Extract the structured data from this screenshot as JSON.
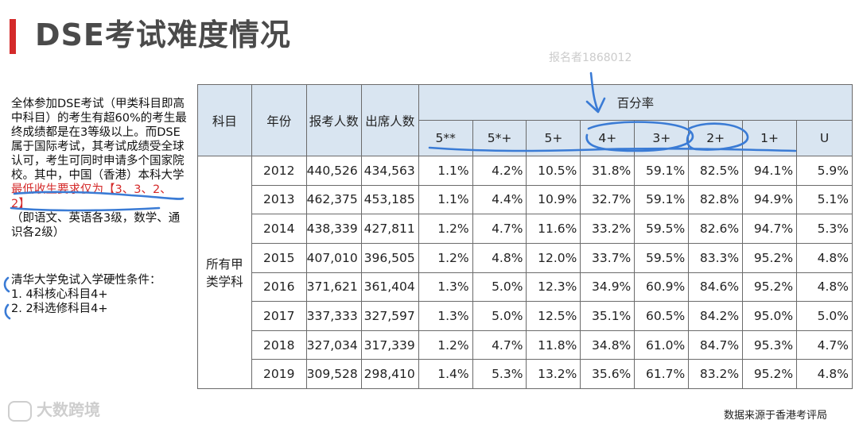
{
  "title": "DSE考试难度情况",
  "note": {
    "part1": "全体参加DSE考试（甲类科目即高中科目）的考生有超60%的考生最终成绩都是在3等级以上。而DSE属于国际考试，其考试成绩受全球认可，考生可同时申请多个国家院校。其中，中国（香港）本科大学",
    "red": "最低收生要求仅为【3、3、2、2】",
    "part2": "（即语文、英语各3级，数学、通识各2级）"
  },
  "requirements": {
    "title": "清华大学免试入学硬性条件：",
    "items": [
      "1. 4科核心科目4+",
      "2. 2科选修科目4+"
    ]
  },
  "table": {
    "headers": {
      "subject": "科目",
      "year": "年份",
      "registered": "报考人数",
      "attended": "出席人数",
      "percent": "百分率"
    },
    "grades": [
      "5**",
      "5*+",
      "5+",
      "4+",
      "3+",
      "2+",
      "1+",
      "U"
    ],
    "subject_label": "所有甲类学科",
    "rows": [
      {
        "year": "2012",
        "registered": "440,526",
        "attended": "434,563",
        "pcts": [
          "1.1%",
          "4.2%",
          "10.5%",
          "31.8%",
          "59.1%",
          "82.5%",
          "94.1%",
          "5.9%"
        ]
      },
      {
        "year": "2013",
        "registered": "462,375",
        "attended": "453,185",
        "pcts": [
          "1.1%",
          "4.4%",
          "10.9%",
          "32.7%",
          "59.1%",
          "82.8%",
          "94.9%",
          "5.1%"
        ]
      },
      {
        "year": "2014",
        "registered": "438,339",
        "attended": "427,811",
        "pcts": [
          "1.2%",
          "4.7%",
          "11.6%",
          "33.2%",
          "59.5%",
          "82.6%",
          "94.7%",
          "5.3%"
        ]
      },
      {
        "year": "2015",
        "registered": "407,010",
        "attended": "396,505",
        "pcts": [
          "1.2%",
          "4.8%",
          "12.0%",
          "33.7%",
          "59.5%",
          "83.3%",
          "95.2%",
          "4.8%"
        ]
      },
      {
        "year": "2016",
        "registered": "371,621",
        "attended": "361,404",
        "pcts": [
          "1.3%",
          "5.0%",
          "12.3%",
          "34.9%",
          "60.9%",
          "84.6%",
          "95.2%",
          "4.8%"
        ]
      },
      {
        "year": "2017",
        "registered": "337,333",
        "attended": "327,597",
        "pcts": [
          "1.3%",
          "5.0%",
          "12.5%",
          "35.1%",
          "60.5%",
          "84.2%",
          "95.0%",
          "5.0%"
        ]
      },
      {
        "year": "2018",
        "registered": "327,034",
        "attended": "317,339",
        "pcts": [
          "1.2%",
          "4.7%",
          "11.8%",
          "34.8%",
          "61.0%",
          "84.7%",
          "95.3%",
          "4.7%"
        ]
      },
      {
        "year": "2019",
        "registered": "309,528",
        "attended": "298,410",
        "pcts": [
          "1.4%",
          "5.3%",
          "13.2%",
          "35.6%",
          "61.7%",
          "83.2%",
          "95.2%",
          "4.8%"
        ]
      }
    ]
  },
  "source": "数据来源于香港考评局",
  "watermark": "大数跨境",
  "watermark2": "报名者1868012",
  "ink_color": "#3a7bd5",
  "accent_color": "#d42a2a"
}
